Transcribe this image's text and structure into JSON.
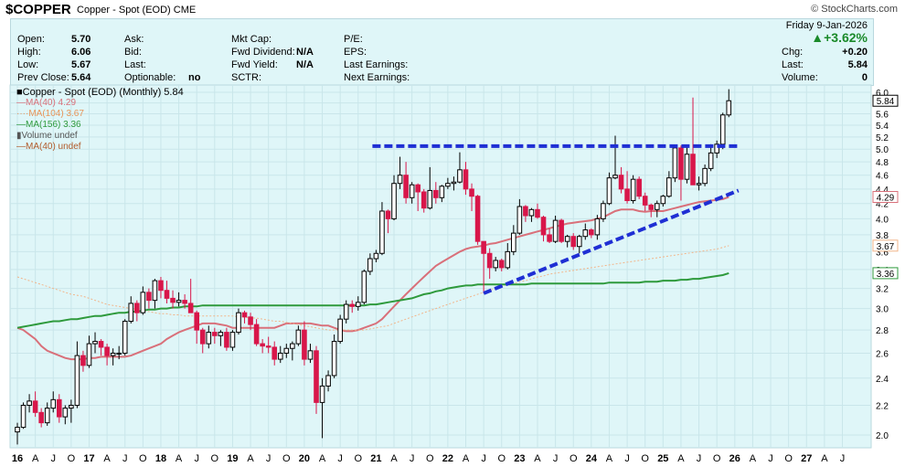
{
  "header": {
    "symbol": "$COPPER",
    "description": "Copper - Spot (EOD) CME",
    "brand": "© StockCharts.com"
  },
  "info": {
    "open_label": "Open:",
    "open": "5.70",
    "high_label": "High:",
    "high": "6.06",
    "low_label": "Low:",
    "low": "5.67",
    "prev_close_label": "Prev Close:",
    "prev_close": "5.64",
    "ask_label": "Ask:",
    "bid_label": "Bid:",
    "last_label": "Last:",
    "optionable_label": "Optionable:",
    "optionable": "no",
    "mkt_cap_label": "Mkt Cap:",
    "fwd_dividend_label": "Fwd Dividend:",
    "fwd_dividend": "N/A",
    "fwd_yield_label": "Fwd Yield:",
    "fwd_yield": "N/A",
    "sctr_label": "SCTR:",
    "pe_label": "P/E:",
    "eps_label": "EPS:",
    "last_earnings_label": "Last Earnings:",
    "next_earnings_label": "Next Earnings:"
  },
  "quote": {
    "date": "Friday   9-Jan-2026",
    "change_pct": "▲+3.62%",
    "chg_label": "Chg:",
    "chg": "+0.20",
    "last_label": "Last:",
    "last": "5.84",
    "volume_label": "Volume:",
    "volume": "0"
  },
  "legend": {
    "main": "■Copper - Spot (EOD) (Monthly) 5.84",
    "ma40": "—MA(40) 4.29",
    "ma104": "····MA(104) 3.67",
    "ma156": "—MA(156) 3.36",
    "volume": "▮Volume undef",
    "ma40_vol": "—MA(40) undef"
  },
  "colors": {
    "background": "#dff6f8",
    "up": "#000000",
    "down": "#d8164a",
    "ma40": "#d9707a",
    "ma104": "#f2b58a",
    "ma156": "#2e9a3c",
    "trendline": "#1f2fd4"
  },
  "chart_data": {
    "type": "candlestick",
    "title": "Copper - Spot (EOD) (Monthly) 5.84",
    "ylim": [
      1.9,
      6.2
    ],
    "y_scale": "log",
    "y_ticks": [
      2.0,
      2.2,
      2.4,
      2.6,
      2.8,
      3.0,
      3.2,
      3.4,
      3.6,
      3.8,
      4.0,
      4.2,
      4.4,
      4.6,
      4.8,
      5.0,
      5.2,
      5.4,
      5.6,
      5.8,
      6.0
    ],
    "x_tick_labels": [
      "16",
      "A",
      "J",
      "O",
      "17",
      "A",
      "J",
      "O",
      "18",
      "A",
      "J",
      "O",
      "19",
      "A",
      "J",
      "O",
      "20",
      "A",
      "J",
      "O",
      "21",
      "A",
      "J",
      "O",
      "22",
      "A",
      "J",
      "O",
      "23",
      "A",
      "J",
      "O",
      "24",
      "A",
      "J",
      "O",
      "25",
      "A",
      "J",
      "O",
      "26",
      "A",
      "J",
      "O",
      "27",
      "A",
      "J"
    ],
    "start_month": "2016-01",
    "candles": [
      [
        2.02,
        2.08,
        1.94,
        2.05
      ],
      [
        2.05,
        2.22,
        2.04,
        2.2
      ],
      [
        2.2,
        2.28,
        2.15,
        2.23
      ],
      [
        2.23,
        2.3,
        2.12,
        2.15
      ],
      [
        2.15,
        2.18,
        2.05,
        2.08
      ],
      [
        2.08,
        2.22,
        2.06,
        2.18
      ],
      [
        2.18,
        2.3,
        2.15,
        2.24
      ],
      [
        2.24,
        2.28,
        2.08,
        2.12
      ],
      [
        2.12,
        2.2,
        2.07,
        2.18
      ],
      [
        2.18,
        2.24,
        2.08,
        2.2
      ],
      [
        2.2,
        2.7,
        2.18,
        2.58
      ],
      [
        2.58,
        2.62,
        2.45,
        2.5
      ],
      [
        2.5,
        2.75,
        2.48,
        2.68
      ],
      [
        2.68,
        2.78,
        2.6,
        2.7
      ],
      [
        2.7,
        2.72,
        2.58,
        2.65
      ],
      [
        2.65,
        2.68,
        2.5,
        2.58
      ],
      [
        2.58,
        2.64,
        2.5,
        2.6
      ],
      [
        2.6,
        2.66,
        2.55,
        2.6
      ],
      [
        2.6,
        2.9,
        2.58,
        2.88
      ],
      [
        2.88,
        3.12,
        2.86,
        3.05
      ],
      [
        3.05,
        3.08,
        2.88,
        2.96
      ],
      [
        2.96,
        3.22,
        2.94,
        3.16
      ],
      [
        3.16,
        3.2,
        3.0,
        3.08
      ],
      [
        3.08,
        3.3,
        3.0,
        3.28
      ],
      [
        3.28,
        3.32,
        3.1,
        3.18
      ],
      [
        3.18,
        3.28,
        3.05,
        3.1
      ],
      [
        3.1,
        3.18,
        3.0,
        3.06
      ],
      [
        3.06,
        3.16,
        3.02,
        3.08
      ],
      [
        3.08,
        3.14,
        3.0,
        3.05
      ],
      [
        3.05,
        3.3,
        3.0,
        2.96
      ],
      [
        2.96,
        2.98,
        2.68,
        2.8
      ],
      [
        2.8,
        2.82,
        2.6,
        2.68
      ],
      [
        2.68,
        2.84,
        2.64,
        2.78
      ],
      [
        2.78,
        2.82,
        2.68,
        2.75
      ],
      [
        2.75,
        2.8,
        2.66,
        2.78
      ],
      [
        2.78,
        2.82,
        2.62,
        2.65
      ],
      [
        2.65,
        2.8,
        2.62,
        2.78
      ],
      [
        2.78,
        3.0,
        2.76,
        2.96
      ],
      [
        2.96,
        2.98,
        2.86,
        2.92
      ],
      [
        2.92,
        2.96,
        2.8,
        2.85
      ],
      [
        2.85,
        2.9,
        2.66,
        2.68
      ],
      [
        2.68,
        2.72,
        2.6,
        2.66
      ],
      [
        2.66,
        2.74,
        2.6,
        2.65
      ],
      [
        2.65,
        2.7,
        2.5,
        2.55
      ],
      [
        2.55,
        2.66,
        2.52,
        2.6
      ],
      [
        2.6,
        2.68,
        2.56,
        2.64
      ],
      [
        2.64,
        2.7,
        2.54,
        2.68
      ],
      [
        2.68,
        2.84,
        2.66,
        2.8
      ],
      [
        2.8,
        2.88,
        2.5,
        2.55
      ],
      [
        2.55,
        2.68,
        2.52,
        2.62
      ],
      [
        2.62,
        2.66,
        2.14,
        2.22
      ],
      [
        2.22,
        2.4,
        1.98,
        2.34
      ],
      [
        2.34,
        2.46,
        2.3,
        2.42
      ],
      [
        2.42,
        2.76,
        2.4,
        2.7
      ],
      [
        2.7,
        2.94,
        2.68,
        2.9
      ],
      [
        2.9,
        3.08,
        2.86,
        3.04
      ],
      [
        3.04,
        3.08,
        2.96,
        3.02
      ],
      [
        3.02,
        3.12,
        2.98,
        3.06
      ],
      [
        3.06,
        3.4,
        3.04,
        3.38
      ],
      [
        3.38,
        3.58,
        3.34,
        3.52
      ],
      [
        3.52,
        3.62,
        3.48,
        3.58
      ],
      [
        3.58,
        4.22,
        3.56,
        4.1
      ],
      [
        4.1,
        4.12,
        3.82,
        4.0
      ],
      [
        4.0,
        4.6,
        3.98,
        4.48
      ],
      [
        4.48,
        4.88,
        4.4,
        4.6
      ],
      [
        4.6,
        4.8,
        4.2,
        4.28
      ],
      [
        4.28,
        4.5,
        4.2,
        4.46
      ],
      [
        4.46,
        4.48,
        4.1,
        4.36
      ],
      [
        4.36,
        4.4,
        4.08,
        4.14
      ],
      [
        4.14,
        4.72,
        4.12,
        4.38
      ],
      [
        4.38,
        4.5,
        4.2,
        4.28
      ],
      [
        4.28,
        4.46,
        4.22,
        4.44
      ],
      [
        4.44,
        4.56,
        4.4,
        4.48
      ],
      [
        4.48,
        4.58,
        4.38,
        4.5
      ],
      [
        4.5,
        4.95,
        4.48,
        4.68
      ],
      [
        4.68,
        4.8,
        4.32,
        4.4
      ],
      [
        4.4,
        4.48,
        4.1,
        4.3
      ],
      [
        4.3,
        4.32,
        3.68,
        3.72
      ],
      [
        3.72,
        3.72,
        3.15,
        3.58
      ],
      [
        3.58,
        3.64,
        3.3,
        3.42
      ],
      [
        3.42,
        3.54,
        3.38,
        3.5
      ],
      [
        3.5,
        3.52,
        3.38,
        3.42
      ],
      [
        3.42,
        3.7,
        3.4,
        3.6
      ],
      [
        3.6,
        3.92,
        3.56,
        3.82
      ],
      [
        3.82,
        4.26,
        3.8,
        4.16
      ],
      [
        4.16,
        4.18,
        3.96,
        4.04
      ],
      [
        4.04,
        4.14,
        3.96,
        4.12
      ],
      [
        4.12,
        4.2,
        4.0,
        4.02
      ],
      [
        4.02,
        4.04,
        3.72,
        3.8
      ],
      [
        3.8,
        3.88,
        3.7,
        3.72
      ],
      [
        3.72,
        4.04,
        3.7,
        3.98
      ],
      [
        3.98,
        4.0,
        3.7,
        3.72
      ],
      [
        3.72,
        3.8,
        3.65,
        3.78
      ],
      [
        3.78,
        3.82,
        3.62,
        3.66
      ],
      [
        3.66,
        3.8,
        3.58,
        3.78
      ],
      [
        3.78,
        3.94,
        3.74,
        3.86
      ],
      [
        3.86,
        3.88,
        3.76,
        3.8
      ],
      [
        3.8,
        4.05,
        3.74,
        4.0
      ],
      [
        4.0,
        4.24,
        3.96,
        4.2
      ],
      [
        4.2,
        4.64,
        4.18,
        4.56
      ],
      [
        4.56,
        5.22,
        4.54,
        4.6
      ],
      [
        4.6,
        4.72,
        4.34,
        4.4
      ],
      [
        4.4,
        4.66,
        4.2,
        4.24
      ],
      [
        4.24,
        4.6,
        4.2,
        4.54
      ],
      [
        4.54,
        4.58,
        4.26,
        4.3
      ],
      [
        4.3,
        4.35,
        4.1,
        4.18
      ],
      [
        4.18,
        4.2,
        4.02,
        4.12
      ],
      [
        4.12,
        4.24,
        4.02,
        4.2
      ],
      [
        4.2,
        4.32,
        4.16,
        4.3
      ],
      [
        4.3,
        4.66,
        4.28,
        4.56
      ],
      [
        4.56,
        5.04,
        4.5,
        5.02
      ],
      [
        5.02,
        5.06,
        4.24,
        4.54
      ],
      [
        4.54,
        5.05,
        4.48,
        4.92
      ],
      [
        4.92,
        5.9,
        4.46,
        4.46
      ],
      [
        4.46,
        4.58,
        4.38,
        4.48
      ],
      [
        4.48,
        4.76,
        4.44,
        4.7
      ],
      [
        4.7,
        5.08,
        4.66,
        4.94
      ],
      [
        4.94,
        5.14,
        4.86,
        5.08
      ],
      [
        5.08,
        5.62,
        5.0,
        5.58
      ],
      [
        5.58,
        6.06,
        5.54,
        5.84
      ]
    ],
    "series": [
      {
        "name": "MA(40)",
        "values_first_month": "2016-01",
        "values": [
          2.82,
          2.8,
          2.76,
          2.72,
          2.66,
          2.62,
          2.6,
          2.58,
          2.56,
          2.55,
          2.55,
          2.55,
          2.56,
          2.56,
          2.57,
          2.57,
          2.57,
          2.57,
          2.57,
          2.58,
          2.6,
          2.62,
          2.64,
          2.66,
          2.68,
          2.72,
          2.75,
          2.78,
          2.8,
          2.82,
          2.84,
          2.86,
          2.86,
          2.86,
          2.85,
          2.84,
          2.82,
          2.82,
          2.82,
          2.82,
          2.82,
          2.82,
          2.82,
          2.82,
          2.84,
          2.86,
          2.86,
          2.86,
          2.86,
          2.86,
          2.85,
          2.84,
          2.84,
          2.82,
          2.8,
          2.79,
          2.79,
          2.8,
          2.82,
          2.84,
          2.86,
          2.9,
          2.96,
          3.02,
          3.08,
          3.14,
          3.2,
          3.26,
          3.32,
          3.38,
          3.44,
          3.48,
          3.52,
          3.56,
          3.6,
          3.63,
          3.65,
          3.66,
          3.67,
          3.69,
          3.7,
          3.72,
          3.74,
          3.76,
          3.78,
          3.8,
          3.82,
          3.84,
          3.86,
          3.88,
          3.9,
          3.92,
          3.94,
          3.95,
          3.96,
          3.97,
          3.98,
          4.0,
          4.02,
          4.06,
          4.1,
          4.12,
          4.12,
          4.12,
          4.1,
          4.09,
          4.1,
          4.1,
          4.1,
          4.12,
          4.14,
          4.16,
          4.18,
          4.2,
          4.22,
          4.23,
          4.24,
          4.25,
          4.26,
          4.29
        ]
      },
      {
        "name": "MA(104)",
        "values_first_month": "2016-01",
        "values": [
          3.32,
          3.3,
          3.28,
          3.26,
          3.24,
          3.22,
          3.2,
          3.18,
          3.16,
          3.14,
          3.13,
          3.12,
          3.1,
          3.08,
          3.06,
          3.04,
          3.03,
          3.02,
          3.01,
          3.0,
          2.99,
          2.98,
          2.97,
          2.96,
          2.95,
          2.95,
          2.94,
          2.94,
          2.93,
          2.93,
          2.93,
          2.93,
          2.93,
          2.93,
          2.93,
          2.93,
          2.93,
          2.92,
          2.92,
          2.91,
          2.91,
          2.9,
          2.89,
          2.88,
          2.88,
          2.87,
          2.86,
          2.85,
          2.84,
          2.83,
          2.82,
          2.81,
          2.8,
          2.8,
          2.8,
          2.8,
          2.8,
          2.8,
          2.8,
          2.81,
          2.82,
          2.83,
          2.84,
          2.86,
          2.88,
          2.9,
          2.92,
          2.94,
          2.96,
          2.98,
          3.0,
          3.02,
          3.04,
          3.06,
          3.08,
          3.1,
          3.12,
          3.14,
          3.16,
          3.18,
          3.2,
          3.22,
          3.24,
          3.25,
          3.27,
          3.28,
          3.3,
          3.32,
          3.33,
          3.35,
          3.36,
          3.37,
          3.38,
          3.39,
          3.4,
          3.41,
          3.42,
          3.43,
          3.44,
          3.45,
          3.46,
          3.47,
          3.48,
          3.49,
          3.5,
          3.51,
          3.52,
          3.53,
          3.54,
          3.55,
          3.56,
          3.57,
          3.58,
          3.59,
          3.6,
          3.61,
          3.62,
          3.63,
          3.65,
          3.67
        ]
      },
      {
        "name": "MA(156)",
        "values_first_month": "2016-01",
        "values": [
          2.82,
          2.83,
          2.84,
          2.85,
          2.86,
          2.87,
          2.88,
          2.88,
          2.89,
          2.9,
          2.9,
          2.91,
          2.92,
          2.93,
          2.93,
          2.94,
          2.95,
          2.96,
          2.96,
          2.97,
          2.97,
          2.98,
          2.99,
          2.99,
          3.0,
          3.0,
          3.01,
          3.01,
          3.02,
          3.02,
          3.02,
          3.03,
          3.03,
          3.03,
          3.03,
          3.03,
          3.03,
          3.03,
          3.03,
          3.03,
          3.03,
          3.03,
          3.03,
          3.03,
          3.03,
          3.03,
          3.03,
          3.03,
          3.03,
          3.03,
          3.03,
          3.03,
          3.03,
          3.03,
          3.03,
          3.03,
          3.03,
          3.03,
          3.03,
          3.04,
          3.04,
          3.05,
          3.06,
          3.07,
          3.08,
          3.09,
          3.1,
          3.12,
          3.14,
          3.15,
          3.17,
          3.18,
          3.2,
          3.21,
          3.22,
          3.23,
          3.23,
          3.24,
          3.24,
          3.24,
          3.24,
          3.24,
          3.24,
          3.24,
          3.24,
          3.24,
          3.25,
          3.25,
          3.25,
          3.25,
          3.25,
          3.25,
          3.25,
          3.25,
          3.25,
          3.25,
          3.25,
          3.25,
          3.25,
          3.26,
          3.26,
          3.26,
          3.26,
          3.26,
          3.26,
          3.27,
          3.27,
          3.27,
          3.28,
          3.28,
          3.28,
          3.29,
          3.29,
          3.3,
          3.3,
          3.31,
          3.32,
          3.33,
          3.34,
          3.36
        ]
      }
    ],
    "horizontal_line": {
      "value": 5.05,
      "from_month": "2021-01",
      "to_month": "2026-01"
    },
    "trendline": {
      "from": {
        "month": "2022-07",
        "value": 3.15
      },
      "to": {
        "month": "2026-01",
        "value": 4.38
      }
    },
    "price_tags": [
      "5.84",
      "4.29",
      "3.67",
      "3.36"
    ]
  }
}
